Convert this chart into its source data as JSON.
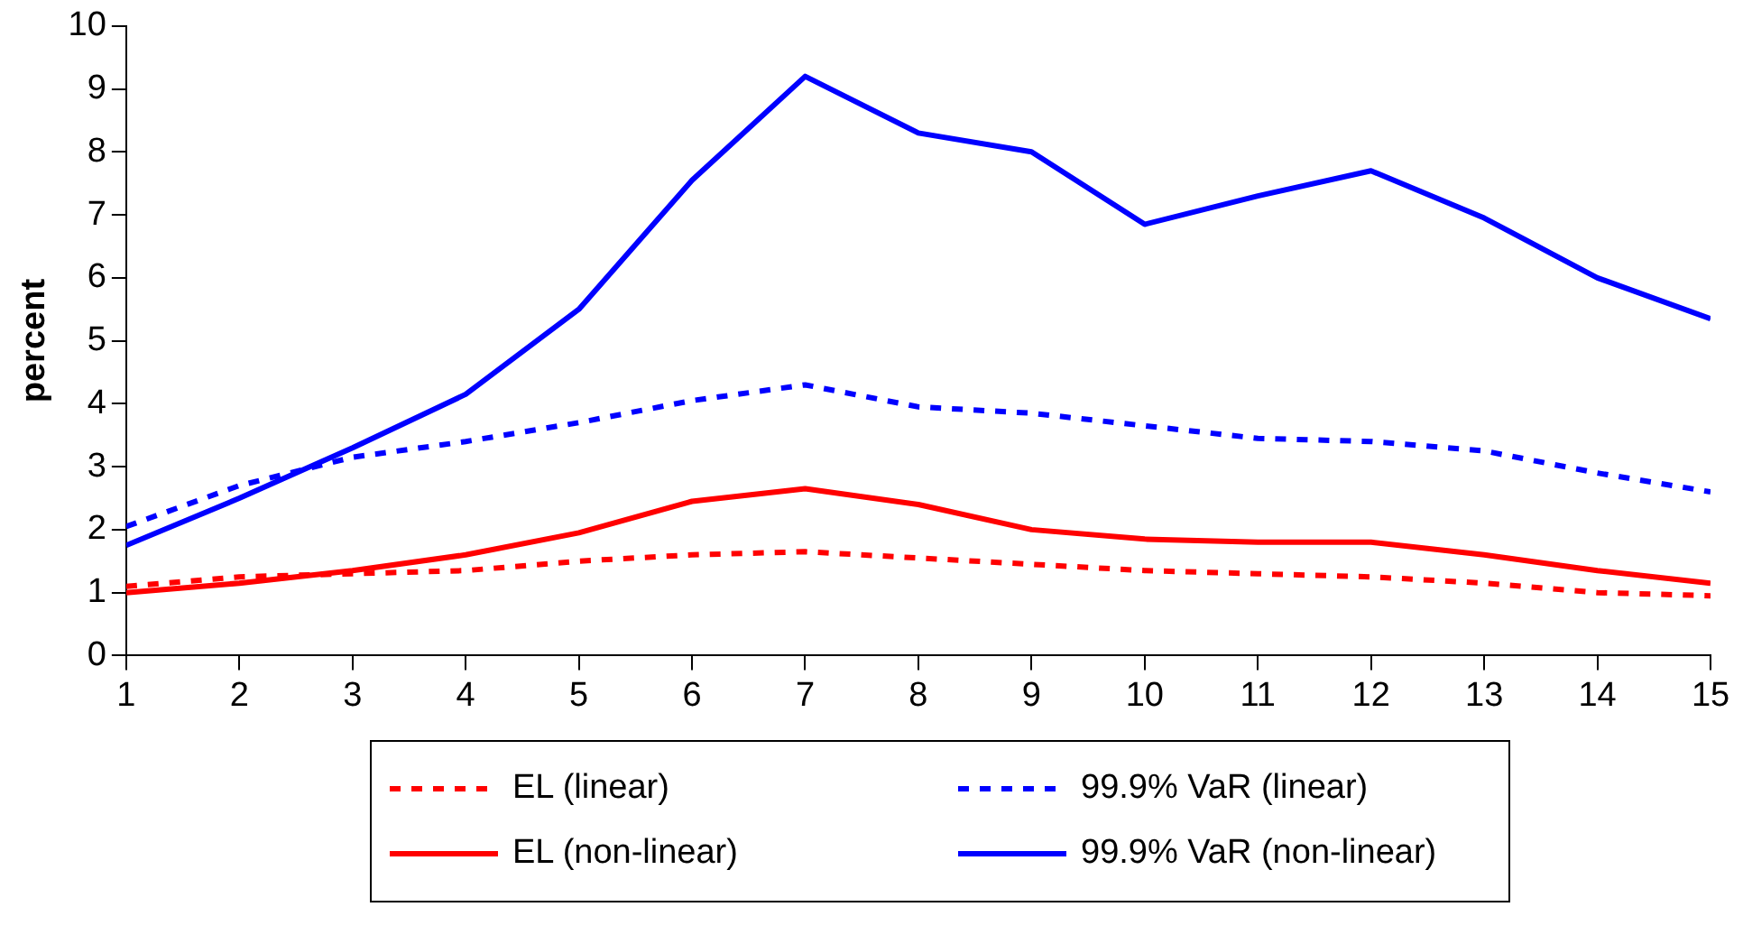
{
  "chart_data": {
    "type": "line",
    "ylabel": "percent",
    "x": [
      1,
      2,
      3,
      4,
      5,
      6,
      7,
      8,
      9,
      10,
      11,
      12,
      13,
      14,
      15
    ],
    "xlim": [
      1,
      15
    ],
    "xticks": [
      1,
      2,
      3,
      4,
      5,
      6,
      7,
      8,
      9,
      10,
      11,
      12,
      13,
      14,
      15
    ],
    "ylim": [
      0,
      10
    ],
    "yticks": [
      0,
      1,
      2,
      3,
      4,
      5,
      6,
      7,
      8,
      9,
      10
    ],
    "grid": false,
    "legend": "bottom",
    "marker": "none",
    "series": [
      {
        "name": "EL (linear)",
        "color": "#ff0000",
        "line_style": "dotted",
        "values": [
          1.1,
          1.25,
          1.3,
          1.35,
          1.5,
          1.6,
          1.65,
          1.55,
          1.45,
          1.35,
          1.3,
          1.25,
          1.15,
          1.0,
          0.95
        ]
      },
      {
        "name": "99.9% VaR (linear)",
        "color": "#0000ff",
        "line_style": "dotted",
        "values": [
          2.05,
          2.7,
          3.15,
          3.4,
          3.7,
          4.05,
          4.3,
          3.95,
          3.85,
          3.65,
          3.45,
          3.4,
          3.25,
          2.9,
          2.6
        ]
      },
      {
        "name": "EL (non-linear)",
        "color": "#ff0000",
        "line_style": "solid",
        "values": [
          1.0,
          1.15,
          1.35,
          1.6,
          1.95,
          2.45,
          2.65,
          2.4,
          2.0,
          1.85,
          1.8,
          1.8,
          1.6,
          1.35,
          1.15
        ]
      },
      {
        "name": "99.9% VaR (non-linear)",
        "color": "#0000ff",
        "line_style": "solid",
        "values": [
          1.75,
          2.5,
          3.3,
          4.15,
          5.5,
          7.55,
          9.2,
          8.3,
          8.0,
          6.85,
          7.3,
          7.7,
          6.95,
          6.0,
          5.35
        ]
      }
    ]
  }
}
